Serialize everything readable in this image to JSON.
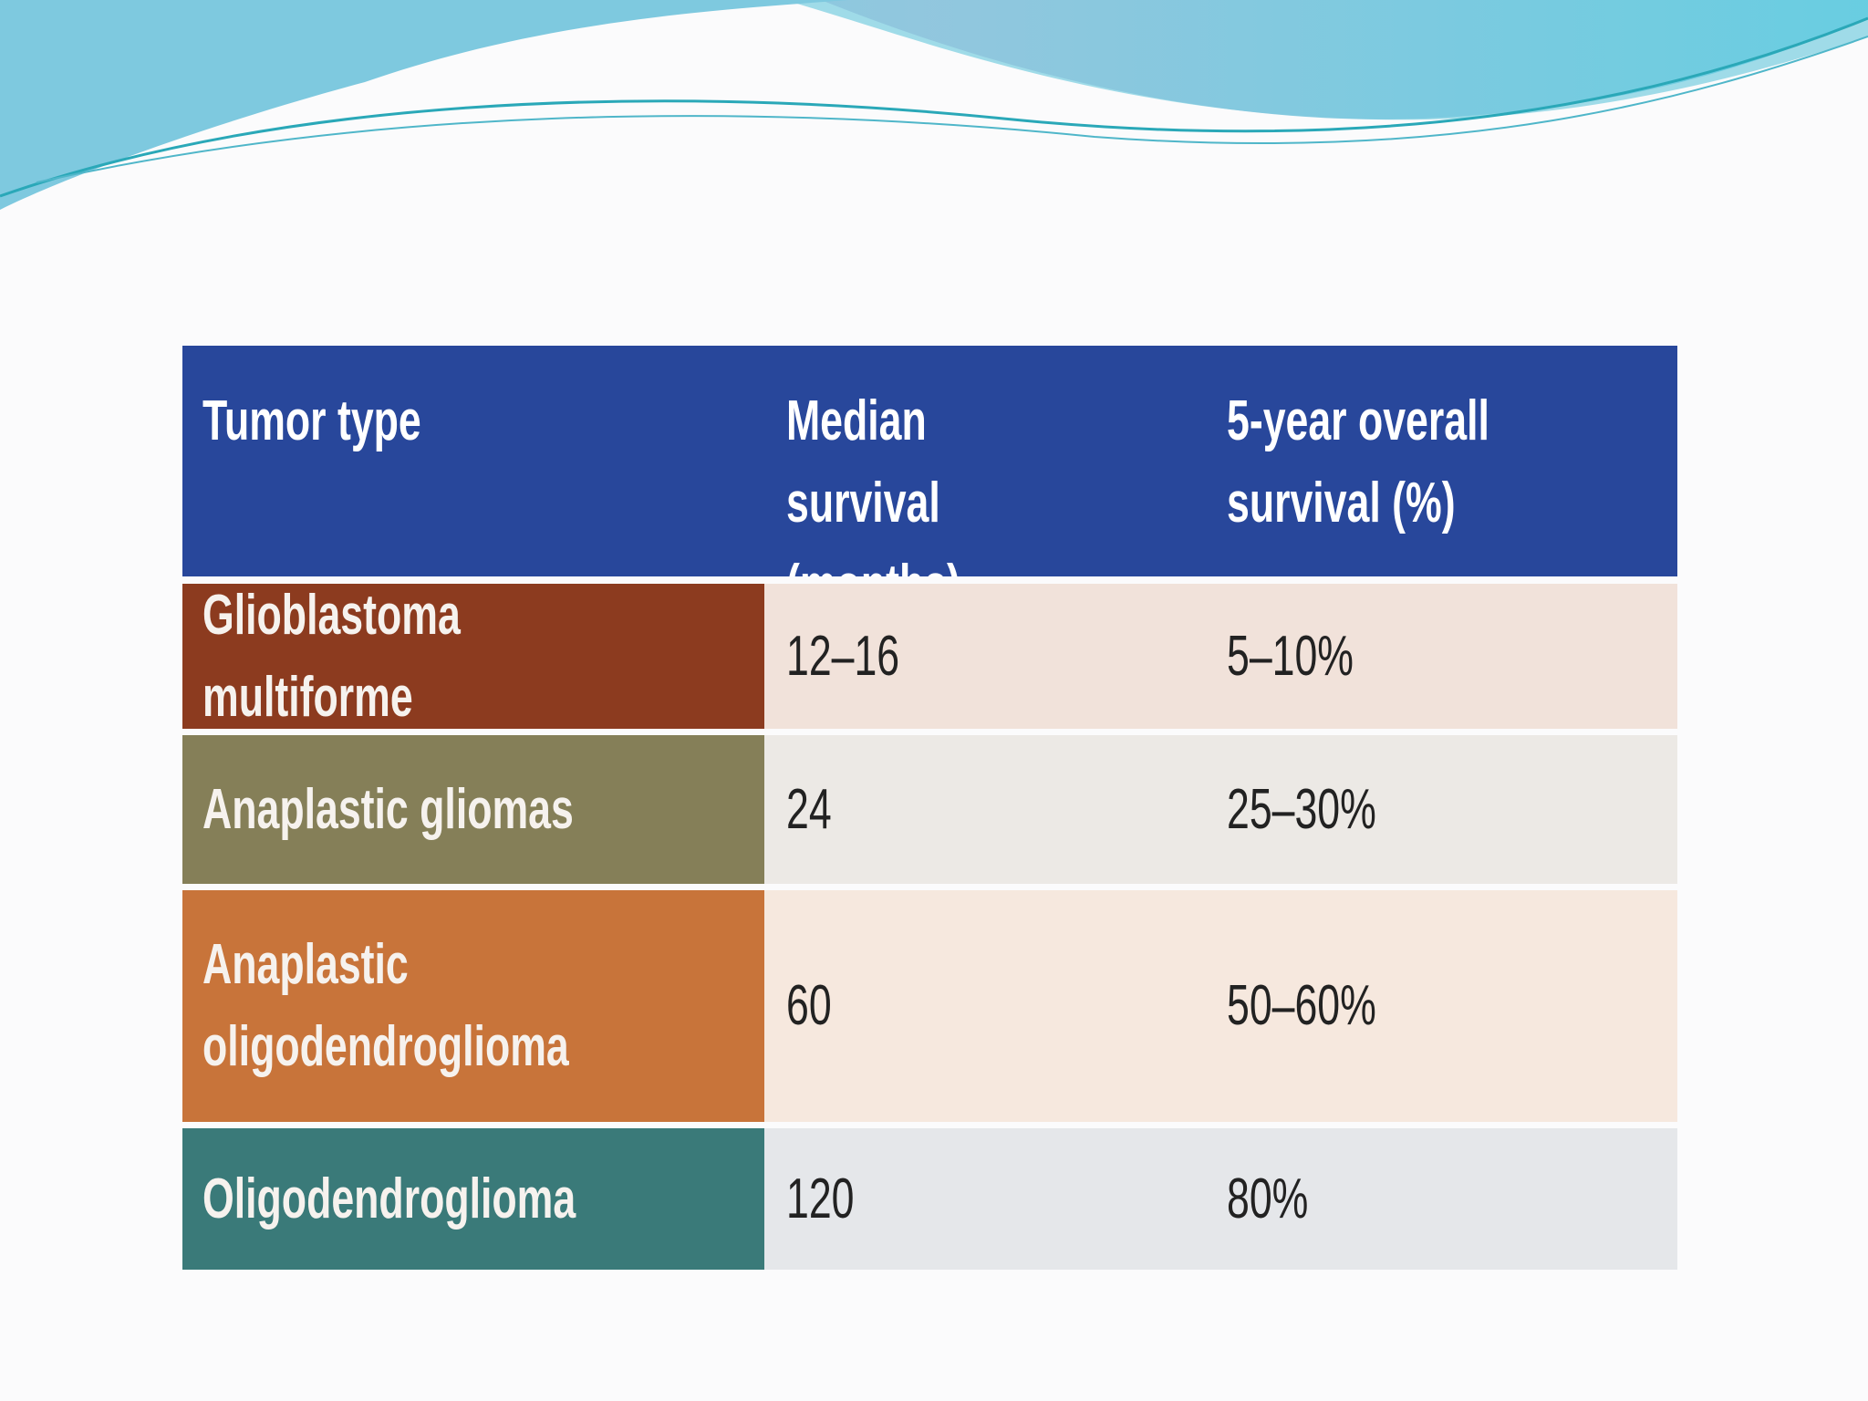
{
  "table": {
    "header": [
      "Tumor type",
      "Median survival (months)",
      "5-year overall survival (%)"
    ],
    "rows": [
      [
        "Glioblastoma multiforme",
        "12–16",
        "5–10%"
      ],
      [
        "Anaplastic gliomas",
        "24",
        "25–30%"
      ],
      [
        "Anaplastic oligodendroglioma",
        "60",
        "50–60%"
      ],
      [
        "Oligodendroglioma",
        "120",
        "80%"
      ]
    ]
  }
}
